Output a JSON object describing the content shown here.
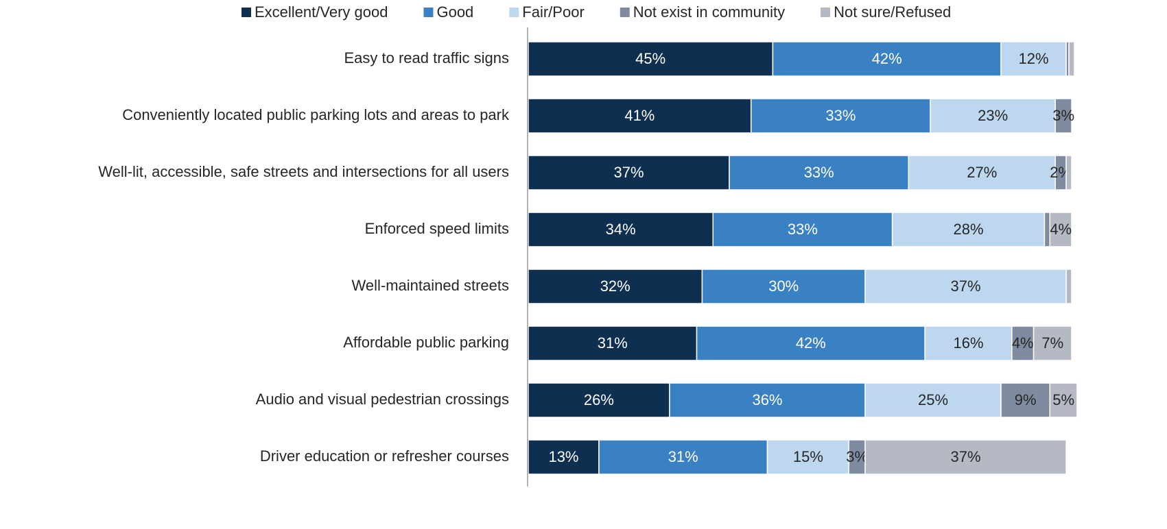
{
  "chart_data": {
    "type": "stacked-bar-horizontal",
    "categories": [
      "Easy to read traffic signs",
      "Conveniently located public parking lots and areas to park",
      "Well-lit, accessible, safe streets and intersections for all users",
      "Enforced speed limits",
      "Well-maintained streets",
      "Affordable public parking",
      "Audio and visual pedestrian crossings",
      "Driver education or refresher courses"
    ],
    "xlim": [
      0,
      100
    ],
    "series": [
      {
        "name": "Excellent/Very good",
        "color": "#0e2f50",
        "values": [
          45,
          41,
          37,
          34,
          32,
          31,
          26,
          13
        ],
        "value_labels": [
          "45%",
          "41%",
          "37%",
          "34%",
          "32%",
          "31%",
          "26%",
          "13%"
        ]
      },
      {
        "name": "Good",
        "color": "#3a81c4",
        "values": [
          42,
          33,
          33,
          33,
          30,
          42,
          36,
          31
        ],
        "value_labels": [
          "42%",
          "33%",
          "33%",
          "33%",
          "30%",
          "42%",
          "36%",
          "31%"
        ]
      },
      {
        "name": "Fair/Poor",
        "color": "#bdd7ee",
        "values": [
          12,
          23,
          27,
          28,
          37,
          16,
          25,
          15
        ],
        "value_labels": [
          "12%",
          "23%",
          "27%",
          "28%",
          "37%",
          "16%",
          "25%",
          "15%"
        ]
      },
      {
        "name": "Not exist in community",
        "color": "#7f8ba0",
        "values": [
          0.5,
          3,
          2,
          1,
          0,
          4,
          9,
          3
        ],
        "value_labels": [
          null,
          "3%",
          "2%",
          null,
          null,
          "4%",
          "9%",
          "3%"
        ]
      },
      {
        "name": "Not sure/Refused",
        "color": "#b5b9c4",
        "values": [
          1,
          0,
          1,
          4,
          1,
          7,
          5,
          37
        ],
        "value_labels": [
          null,
          null,
          null,
          "4%",
          null,
          "7%",
          "5%",
          "37%"
        ]
      }
    ]
  }
}
